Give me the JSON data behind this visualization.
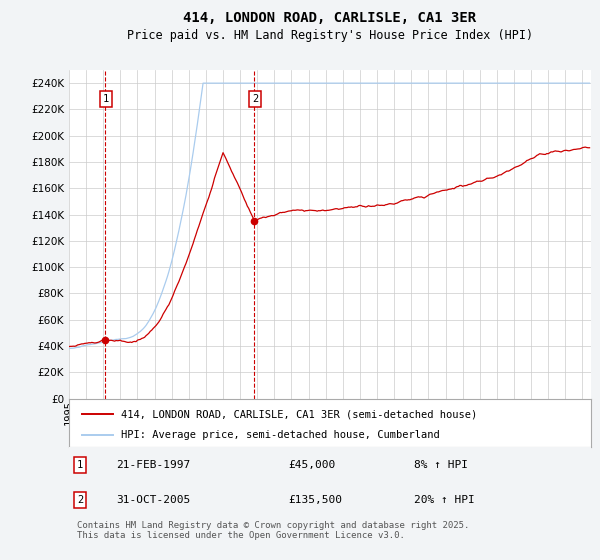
{
  "title": "414, LONDON ROAD, CARLISLE, CA1 3ER",
  "subtitle": "Price paid vs. HM Land Registry's House Price Index (HPI)",
  "ylim": [
    0,
    250000
  ],
  "yticks": [
    0,
    20000,
    40000,
    60000,
    80000,
    100000,
    120000,
    140000,
    160000,
    180000,
    200000,
    220000,
    240000
  ],
  "xlim_start": 1995.0,
  "xlim_end": 2025.5,
  "background_color": "#f2f4f6",
  "plot_bg_color": "#ffffff",
  "grid_color": "#cccccc",
  "red_line_color": "#cc0000",
  "blue_line_color": "#aaccee",
  "vline_color": "#cc0000",
  "sale1_date": 1997.13,
  "sale1_price": 45000,
  "sale1_annotation": "21-FEB-1997",
  "sale1_price_str": "£45,000",
  "sale1_hpi": "8% ↑ HPI",
  "sale2_date": 2005.83,
  "sale2_price": 135500,
  "sale2_annotation": "31-OCT-2005",
  "sale2_price_str": "£135,500",
  "sale2_hpi": "20% ↑ HPI",
  "legend_line1": "414, LONDON ROAD, CARLISLE, CA1 3ER (semi-detached house)",
  "legend_line2": "HPI: Average price, semi-detached house, Cumberland",
  "footnote": "Contains HM Land Registry data © Crown copyright and database right 2025.\nThis data is licensed under the Open Government Licence v3.0.",
  "title_fontsize": 10,
  "subtitle_fontsize": 8.5,
  "tick_fontsize": 7.5,
  "legend_fontsize": 7.5,
  "footnote_fontsize": 6.5
}
